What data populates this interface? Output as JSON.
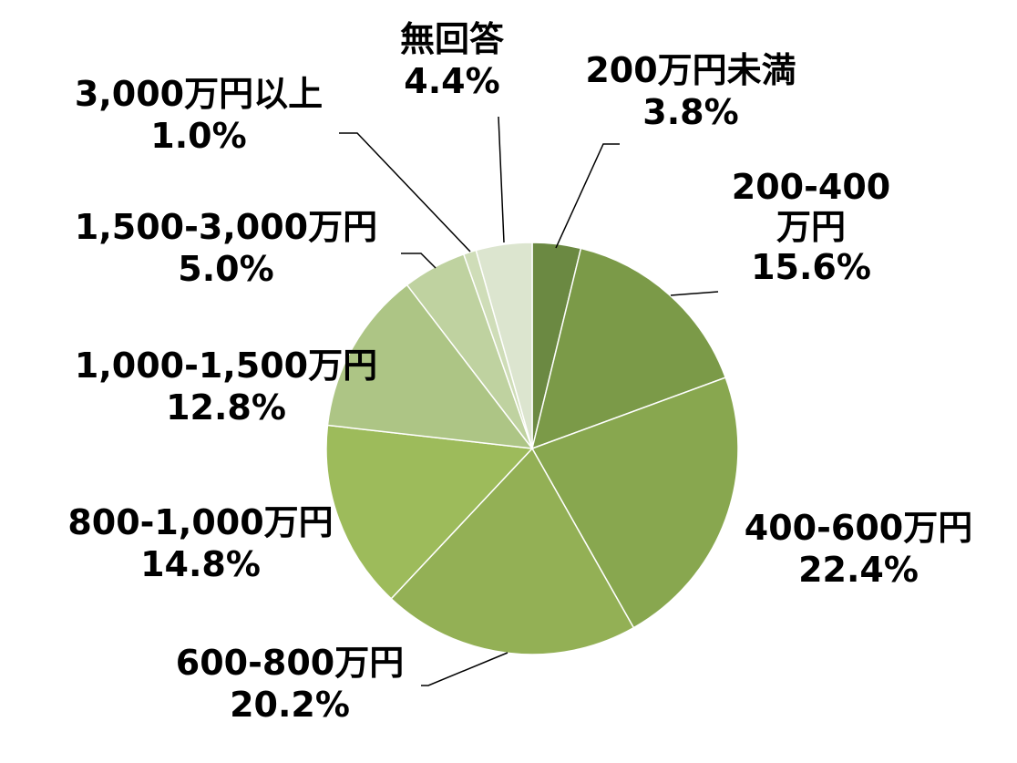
{
  "chart_data": {
    "type": "pie",
    "title": "",
    "start_angle_deg": 0,
    "direction": "clockwise",
    "slices": [
      {
        "label": "200万円未満",
        "value": 3.8,
        "value_label": "3.8%",
        "color": "#6b8942"
      },
      {
        "label": "200-400\n万円",
        "value": 15.6,
        "value_label": "15.6%",
        "color": "#7b9a48"
      },
      {
        "label": "400-600万円",
        "value": 22.4,
        "value_label": "22.4%",
        "color": "#88a74f"
      },
      {
        "label": "600-800万円",
        "value": 20.2,
        "value_label": "20.2%",
        "color": "#93b055"
      },
      {
        "label": "800-1,000万円",
        "value": 14.8,
        "value_label": "14.8%",
        "color": "#9dbb5b"
      },
      {
        "label": "1,000-1,500万円",
        "value": 12.8,
        "value_label": "12.8%",
        "color": "#adc585"
      },
      {
        "label": "1,500-3,000万円",
        "value": 5.0,
        "value_label": "5.0%",
        "color": "#bfd2a0"
      },
      {
        "label": "3,000万円以上",
        "value": 1.0,
        "value_label": "1.0%",
        "color": "#cfddb8"
      },
      {
        "label": "無回答",
        "value": 4.4,
        "value_label": "4.4%",
        "color": "#dce5cf"
      }
    ]
  }
}
